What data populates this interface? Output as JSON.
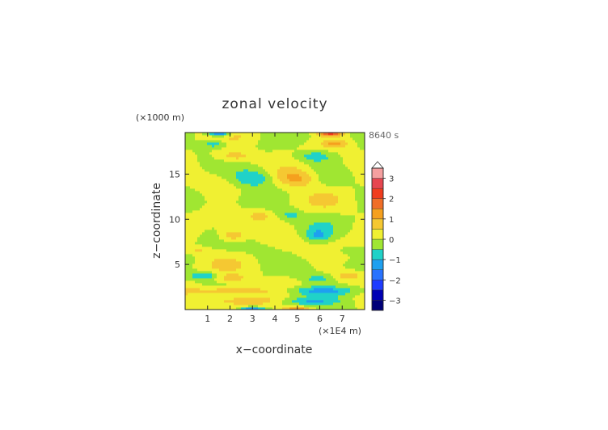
{
  "chart_data": {
    "type": "heatmap",
    "title": "zonal velocity",
    "xlabel": "x−coordinate",
    "ylabel": "z−coordinate",
    "x_unit": "(×1E4 m)",
    "y_unit": "(×1000 m)",
    "time_label": "8640 s",
    "xlim": [
      0,
      8
    ],
    "ylim": [
      0,
      19.6
    ],
    "x_ticks": [
      1,
      2,
      3,
      4,
      5,
      6,
      7
    ],
    "y_ticks": [
      5,
      10,
      15
    ],
    "colorbar": {
      "range": [
        -3.5,
        3.5
      ],
      "ticks": [
        3,
        2,
        1,
        0,
        -1,
        -2,
        -3
      ],
      "extend": "max",
      "levels": [
        {
          "lo": -3.5,
          "hi": -3.0,
          "color": "#000078"
        },
        {
          "lo": -3.0,
          "hi": -2.5,
          "color": "#0000b4"
        },
        {
          "lo": -2.5,
          "hi": -2.0,
          "color": "#1e3cff"
        },
        {
          "lo": -2.0,
          "hi": -1.5,
          "color": "#2873ff"
        },
        {
          "lo": -1.5,
          "hi": -1.0,
          "color": "#1ea0f0"
        },
        {
          "lo": -1.0,
          "hi": -0.5,
          "color": "#20d2c8"
        },
        {
          "lo": -0.5,
          "hi": 0.0,
          "color": "#a0e632"
        },
        {
          "lo": 0.0,
          "hi": 0.5,
          "color": "#f0f032"
        },
        {
          "lo": 0.5,
          "hi": 1.0,
          "color": "#f5c832"
        },
        {
          "lo": 1.0,
          "hi": 1.5,
          "color": "#f5a01e"
        },
        {
          "lo": 1.5,
          "hi": 2.0,
          "color": "#f06e28"
        },
        {
          "lo": 2.0,
          "hi": 2.5,
          "color": "#f03c1e"
        },
        {
          "lo": 2.5,
          "hi": 3.0,
          "color": "#e64650"
        },
        {
          "lo": 3.0,
          "hi": 3.5,
          "color": "#f5a0a0"
        }
      ],
      "extension_color": "#ffffff"
    },
    "field_features": [
      {
        "x": 1.9,
        "z": 2.1,
        "rx": 1.6,
        "rz": 0.55,
        "v": 1.2
      },
      {
        "x": 6.1,
        "z": 2.1,
        "rx": 1.6,
        "rz": 0.55,
        "v": -1.3
      },
      {
        "x": 2.6,
        "z": 1.0,
        "rx": 1.4,
        "rz": 0.4,
        "v": 0.9
      },
      {
        "x": 5.4,
        "z": 1.0,
        "rx": 1.4,
        "rz": 0.4,
        "v": -0.9
      },
      {
        "x": 0.8,
        "z": 3.8,
        "rx": 0.6,
        "rz": 0.45,
        "v": -1.1
      },
      {
        "x": 7.3,
        "z": 3.8,
        "rx": 0.5,
        "rz": 0.45,
        "v": 1.0
      },
      {
        "x": 2.1,
        "z": 3.4,
        "rx": 0.7,
        "rz": 0.5,
        "v": 0.8
      },
      {
        "x": 5.9,
        "z": 3.4,
        "rx": 0.7,
        "rz": 0.5,
        "v": -0.8
      },
      {
        "x": 3.0,
        "z": 14.6,
        "rx": 0.9,
        "rz": 1.0,
        "v": -1.3
      },
      {
        "x": 5.0,
        "z": 14.6,
        "rx": 0.9,
        "rz": 1.0,
        "v": 1.3
      },
      {
        "x": 2.2,
        "z": 17.0,
        "rx": 0.9,
        "rz": 0.7,
        "v": 1.0
      },
      {
        "x": 5.8,
        "z": 17.0,
        "rx": 0.9,
        "rz": 0.7,
        "v": -1.0
      },
      {
        "x": 1.3,
        "z": 18.4,
        "rx": 0.6,
        "rz": 0.5,
        "v": -1.0
      },
      {
        "x": 6.7,
        "z": 18.4,
        "rx": 0.6,
        "rz": 0.5,
        "v": 1.0
      },
      {
        "x": 2.1,
        "z": 8.2,
        "rx": 0.6,
        "rz": 0.8,
        "v": 1.0
      },
      {
        "x": 5.9,
        "z": 8.2,
        "rx": 0.6,
        "rz": 0.8,
        "v": -1.0
      },
      {
        "x": 3.3,
        "z": 10.5,
        "rx": 0.5,
        "rz": 0.6,
        "v": 0.6
      },
      {
        "x": 4.7,
        "z": 10.5,
        "rx": 0.5,
        "rz": 0.6,
        "v": -0.6
      },
      {
        "x": 0.6,
        "z": 6.6,
        "rx": 0.5,
        "rz": 0.4,
        "v": 0.6
      },
      {
        "x": 7.4,
        "z": 6.6,
        "rx": 0.5,
        "rz": 0.4,
        "v": -0.6
      },
      {
        "x": 3.0,
        "z": 0.1,
        "rx": 0.6,
        "rz": 0.25,
        "v": -1.6
      },
      {
        "x": 5.0,
        "z": 0.1,
        "rx": 0.6,
        "rz": 0.25,
        "v": 1.6
      },
      {
        "x": 1.5,
        "z": 19.5,
        "rx": 0.5,
        "rz": 0.3,
        "v": -2.0
      },
      {
        "x": 6.5,
        "z": 19.5,
        "rx": 0.5,
        "rz": 0.3,
        "v": 2.0
      }
    ]
  }
}
